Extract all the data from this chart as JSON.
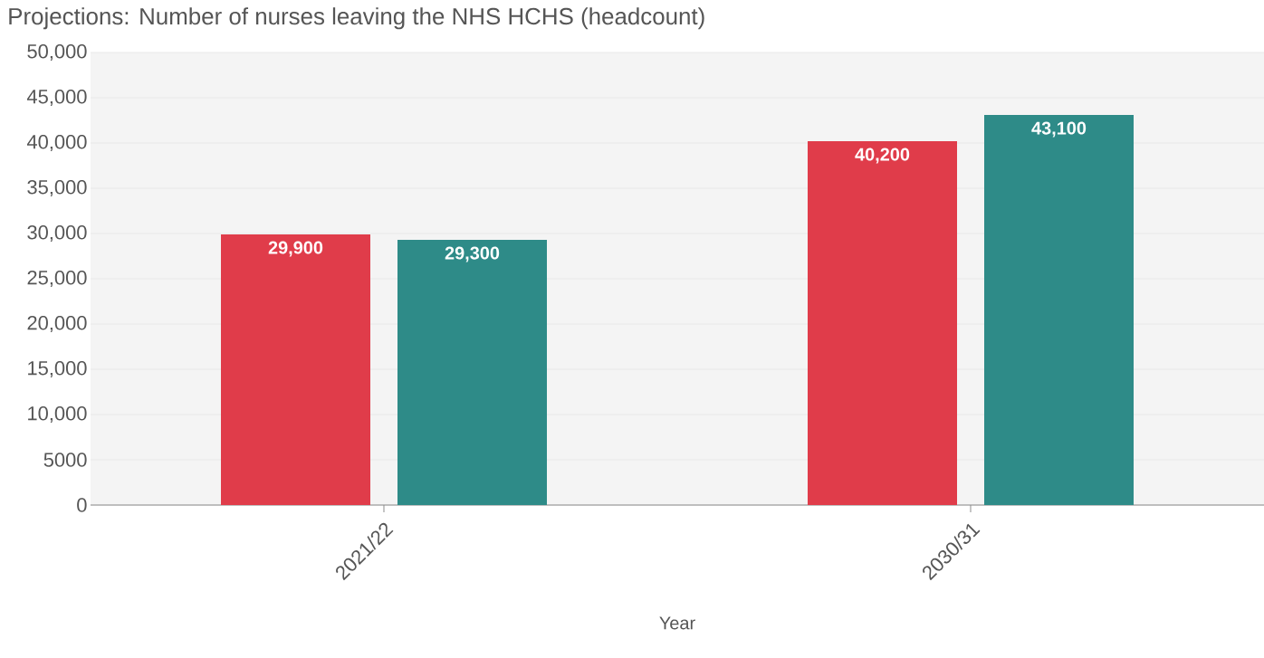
{
  "chart_data": {
    "type": "bar",
    "title": "Projections: Number of nurses leaving the NHS HCHS (headcount)",
    "xlabel": "Year",
    "categories": [
      "2021/22",
      "2030/31"
    ],
    "series": [
      {
        "color": "#e03c4a",
        "values": [
          29900,
          40200
        ],
        "value_labels": [
          "29,900",
          "40,200"
        ]
      },
      {
        "color": "#2e8b88",
        "values": [
          29300,
          43100
        ],
        "value_labels": [
          "29,300",
          "43,100"
        ]
      }
    ],
    "ylim": [
      0,
      50000
    ],
    "yticks": [
      0,
      5000,
      {
        "value": 10000,
        "label": "10,000"
      },
      {
        "value": 15000,
        "label": "15,000"
      },
      {
        "value": 20000,
        "label": "20,000"
      },
      {
        "value": 25000,
        "label": "25,000"
      },
      {
        "value": 30000,
        "label": "30,000"
      },
      {
        "value": 35000,
        "label": "35,000"
      },
      {
        "value": 40000,
        "label": "40,000"
      },
      {
        "value": 45000,
        "label": "45,000"
      },
      {
        "value": 50000,
        "label": "50,000"
      }
    ],
    "grid": "y"
  }
}
